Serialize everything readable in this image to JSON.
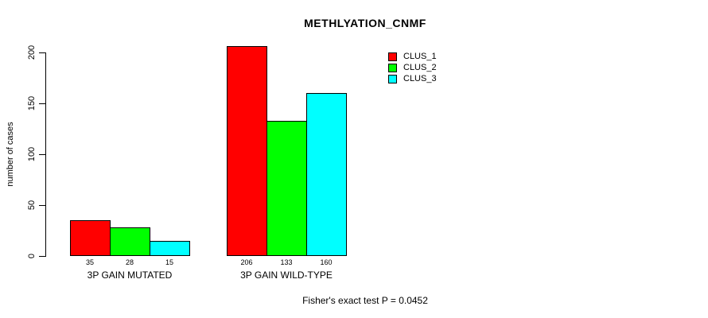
{
  "chart_data": {
    "type": "bar",
    "title": "METHLYATION_CNMF",
    "ylabel": "number of cases",
    "xlabel": "",
    "categories": [
      "3P GAIN MUTATED",
      "3P GAIN WILD-TYPE"
    ],
    "series": [
      {
        "name": "CLUS_1",
        "color": "#FF0000",
        "values": [
          35,
          206
        ]
      },
      {
        "name": "CLUS_2",
        "color": "#00FF00",
        "values": [
          28,
          133
        ]
      },
      {
        "name": "CLUS_3",
        "color": "#00FFFF",
        "values": [
          15,
          160
        ]
      }
    ],
    "bar_value_labels": [
      [
        "35",
        "28",
        "15"
      ],
      [
        "206",
        "133",
        "160"
      ]
    ],
    "yticks": [
      0,
      50,
      100,
      150,
      200
    ],
    "ylim": [
      0,
      200
    ],
    "grid": false,
    "legend_position": "top-right",
    "annotation": "Fisher's exact test P = 0.0452",
    "text_color": "#000000",
    "background_color": "#FFFFFF"
  }
}
